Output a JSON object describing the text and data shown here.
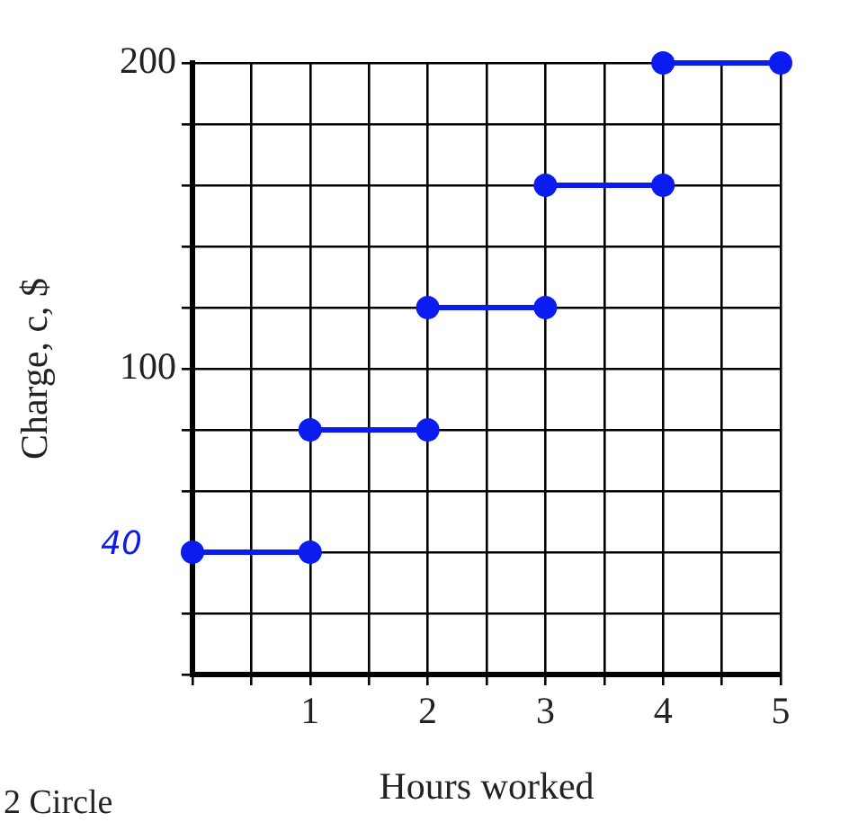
{
  "chart_data": {
    "type": "line",
    "xlabel": "Hours worked",
    "ylabel": "Charge, c, $",
    "xlim": [
      0,
      5
    ],
    "ylim": [
      0,
      200
    ],
    "xticks": [
      {
        "value": 0,
        "label": null
      },
      {
        "value": 0.5,
        "label": null
      },
      1,
      {
        "value": 1.5,
        "label": null
      },
      2,
      {
        "value": 2.5,
        "label": null
      },
      3,
      {
        "value": 3.5,
        "label": null
      },
      4,
      {
        "value": 4.5,
        "label": null
      },
      5
    ],
    "yticks": [
      {
        "value": 0,
        "label": null
      },
      {
        "value": 20,
        "label": null
      },
      {
        "value": 40,
        "label": null
      },
      {
        "value": 60,
        "label": null
      },
      {
        "value": 80,
        "label": null
      },
      100,
      {
        "value": 120,
        "label": null
      },
      {
        "value": 140,
        "label": null
      },
      {
        "value": 160,
        "label": null
      },
      {
        "value": 180,
        "label": null
      },
      200
    ],
    "grid": true,
    "legend": false,
    "marker": "circle",
    "series": [
      {
        "color": "#0b1cf0",
        "x": [
          0,
          1
        ],
        "values": [
          40,
          40
        ]
      },
      {
        "color": "#0b1cf0",
        "x": [
          1,
          2
        ],
        "values": [
          80,
          80
        ]
      },
      {
        "color": "#0b1cf0",
        "x": [
          2,
          3
        ],
        "values": [
          120,
          120
        ]
      },
      {
        "color": "#0b1cf0",
        "x": [
          3,
          4
        ],
        "values": [
          160,
          160
        ]
      },
      {
        "color": "#0b1cf0",
        "x": [
          4,
          5
        ],
        "values": [
          200,
          200
        ]
      }
    ],
    "annotations": [
      "40",
      "2 Circle"
    ]
  }
}
